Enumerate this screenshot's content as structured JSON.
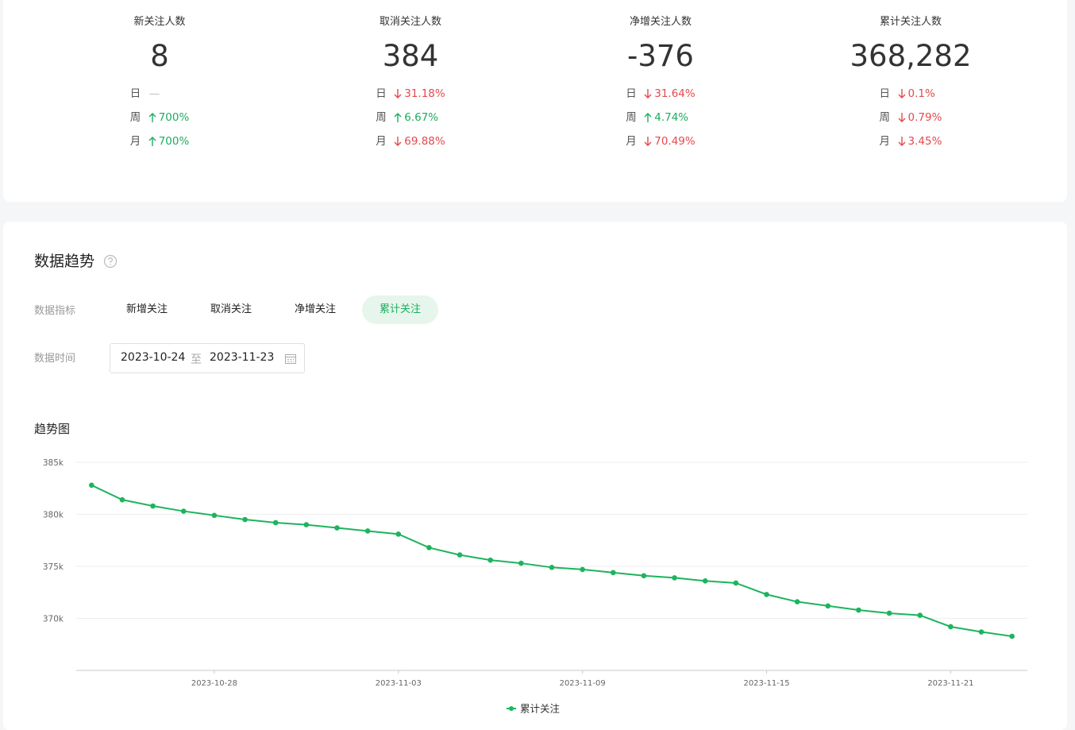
{
  "stats": [
    {
      "label": "新关注人数",
      "value": "8",
      "changes": [
        {
          "period": "日",
          "text": "—",
          "direction": "none"
        },
        {
          "period": "周",
          "text": "700%",
          "direction": "up"
        },
        {
          "period": "月",
          "text": "700%",
          "direction": "up"
        }
      ]
    },
    {
      "label": "取消关注人数",
      "value": "384",
      "changes": [
        {
          "period": "日",
          "text": "31.18%",
          "direction": "down"
        },
        {
          "period": "周",
          "text": "6.67%",
          "direction": "up"
        },
        {
          "period": "月",
          "text": "69.88%",
          "direction": "down"
        }
      ]
    },
    {
      "label": "净增关注人数",
      "value": "-376",
      "changes": [
        {
          "period": "日",
          "text": "31.64%",
          "direction": "down"
        },
        {
          "period": "周",
          "text": "4.74%",
          "direction": "up"
        },
        {
          "period": "月",
          "text": "70.49%",
          "direction": "down"
        }
      ]
    },
    {
      "label": "累计关注人数",
      "value": "368,282",
      "changes": [
        {
          "period": "日",
          "text": "0.1%",
          "direction": "down"
        },
        {
          "period": "周",
          "text": "0.79%",
          "direction": "down"
        },
        {
          "period": "月",
          "text": "3.45%",
          "direction": "down"
        }
      ]
    }
  ],
  "trend": {
    "title": "数据趋势",
    "metric_label": "数据指标",
    "metrics": [
      "新增关注",
      "取消关注",
      "净增关注",
      "累计关注"
    ],
    "active_metric": 3,
    "time_label": "数据时间",
    "start": "2023-10-24",
    "separator": "至",
    "end": "2023-11-23"
  },
  "chart_data": {
    "type": "line",
    "title": "趋势图",
    "x": [
      "2023-10-24",
      "2023-10-25",
      "2023-10-26",
      "2023-10-27",
      "2023-10-28",
      "2023-10-29",
      "2023-10-30",
      "2023-10-31",
      "2023-11-01",
      "2023-11-02",
      "2023-11-03",
      "2023-11-04",
      "2023-11-05",
      "2023-11-06",
      "2023-11-07",
      "2023-11-08",
      "2023-11-09",
      "2023-11-10",
      "2023-11-11",
      "2023-11-12",
      "2023-11-13",
      "2023-11-14",
      "2023-11-15",
      "2023-11-16",
      "2023-11-17",
      "2023-11-18",
      "2023-11-19",
      "2023-11-20",
      "2023-11-21",
      "2023-11-22",
      "2023-11-23"
    ],
    "xlim": [
      "2023-10-24",
      "2023-11-23"
    ],
    "xticks": [
      "2023-10-28",
      "2023-11-03",
      "2023-11-09",
      "2023-11-15",
      "2023-11-21"
    ],
    "ylim": [
      365000,
      385000
    ],
    "yticks": [
      {
        "value": 370000,
        "label": "370k"
      },
      {
        "value": 375000,
        "label": "375k"
      },
      {
        "value": 380000,
        "label": "380k"
      },
      {
        "value": 385000,
        "label": "385k"
      }
    ],
    "grid": true,
    "series": [
      {
        "name": "累计关注",
        "color": "#1db45e",
        "values": [
          382800,
          381400,
          380800,
          380300,
          379900,
          379500,
          379200,
          379000,
          378700,
          378400,
          378100,
          376800,
          376100,
          375600,
          375300,
          374900,
          374700,
          374400,
          374100,
          373900,
          373600,
          373400,
          372300,
          371600,
          371200,
          370800,
          370500,
          370300,
          369200,
          368700,
          368282
        ]
      }
    ]
  }
}
